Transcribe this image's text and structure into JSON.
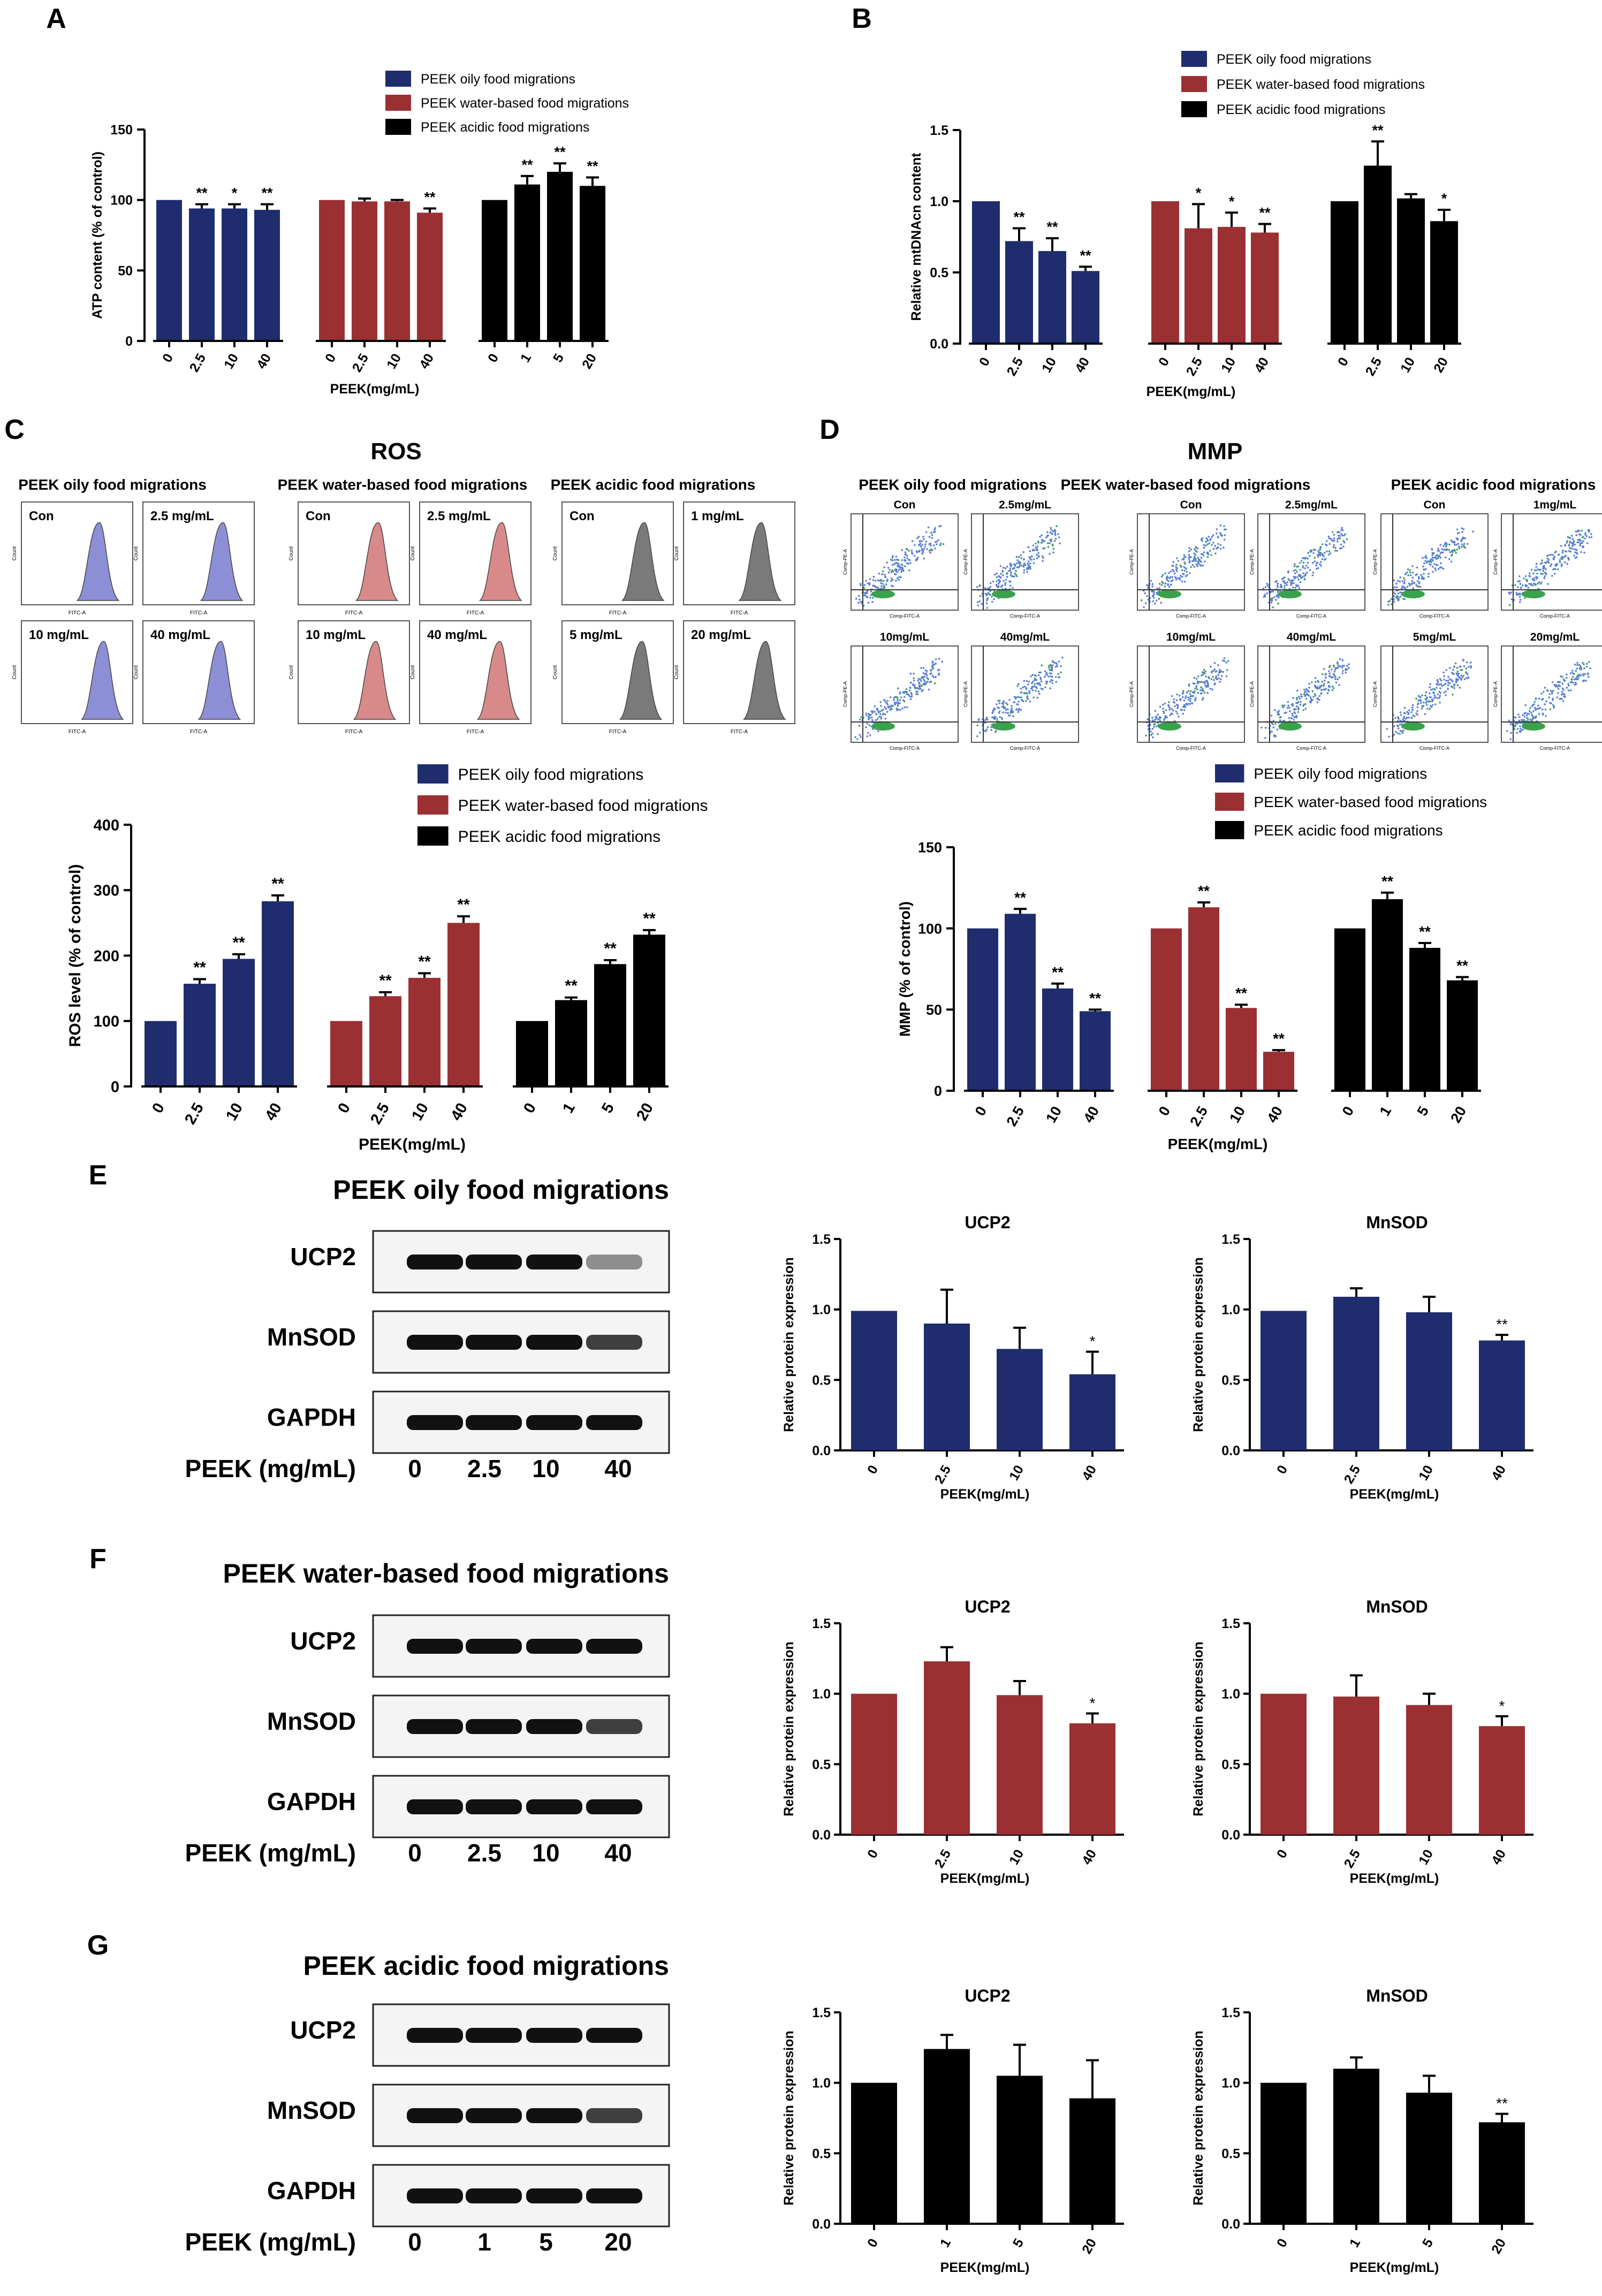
{
  "colors": {
    "blue": "#1f2d6e",
    "red": "#9b3033",
    "black": "#000000",
    "blue_peak": "#8d8fd6",
    "red_peak": "#d88a8a",
    "grey_peak": "#7a7a7a"
  },
  "panel_letters": {
    "A": "A",
    "B": "B",
    "C": "C",
    "D": "D",
    "E": "E",
    "F": "F",
    "G": "G"
  },
  "legend": {
    "oily": "PEEK oily food migrations",
    "water": "PEEK water-based food migrations",
    "acidic": "PEEK acidic food migrations"
  },
  "groups": {
    "A": {
      "type": "bar",
      "ylabel": "ATP content (% of control)",
      "xlabel": "PEEK(mg/mL)",
      "ylim": [
        0,
        150
      ],
      "yticks": [
        0,
        50,
        100,
        150
      ],
      "series": [
        {
          "name": "PEEK oily food migrations",
          "color": "blue",
          "categories": [
            "0",
            "2.5",
            "10",
            "40"
          ],
          "values": [
            100,
            94,
            94,
            93
          ],
          "errors": [
            0,
            3,
            3,
            4
          ],
          "sig": [
            "",
            "**",
            "*",
            "**"
          ]
        },
        {
          "name": "PEEK water-based food migrations",
          "color": "red",
          "categories": [
            "0",
            "2.5",
            "10",
            "40"
          ],
          "values": [
            100,
            99,
            99,
            91
          ],
          "errors": [
            0,
            2,
            1,
            3
          ],
          "sig": [
            "",
            "",
            "",
            "**"
          ]
        },
        {
          "name": "PEEK acidic food migrations",
          "color": "black",
          "categories": [
            "0",
            "1",
            "5",
            "20"
          ],
          "values": [
            100,
            111,
            120,
            110
          ],
          "errors": [
            0,
            6,
            6,
            6
          ],
          "sig": [
            "",
            "**",
            "**",
            "**"
          ]
        }
      ]
    },
    "B": {
      "type": "bar",
      "ylabel": "Relative mtDNAcn content",
      "xlabel": "PEEK(mg/mL)",
      "ylim": [
        0,
        1.5
      ],
      "yticks": [
        "0.0",
        "0.5",
        "1.0",
        "1.5"
      ],
      "series": [
        {
          "name": "PEEK oily food migrations",
          "color": "blue",
          "categories": [
            "0",
            "2.5",
            "10",
            "40"
          ],
          "values": [
            1.0,
            0.72,
            0.65,
            0.51
          ],
          "errors": [
            0,
            0.09,
            0.09,
            0.03
          ],
          "sig": [
            "",
            "**",
            "**",
            "**"
          ]
        },
        {
          "name": "PEEK water-based food migrations",
          "color": "red",
          "categories": [
            "0",
            "2.5",
            "10",
            "40"
          ],
          "values": [
            1.0,
            0.81,
            0.82,
            0.78
          ],
          "errors": [
            0,
            0.17,
            0.1,
            0.06
          ],
          "sig": [
            "",
            "*",
            "*",
            "**"
          ]
        },
        {
          "name": "PEEK acidic food migrations",
          "color": "black",
          "categories": [
            "0",
            "2.5",
            "10",
            "20"
          ],
          "values": [
            1.0,
            1.25,
            1.02,
            0.86
          ],
          "errors": [
            0,
            0.17,
            0.03,
            0.08
          ],
          "sig": [
            "",
            "**",
            "",
            "*"
          ]
        }
      ]
    },
    "C_bar": {
      "type": "bar",
      "ylabel": "ROS level (% of control)",
      "xlabel": "PEEK(mg/mL)",
      "ylim": [
        0,
        400
      ],
      "yticks": [
        0,
        100,
        200,
        300,
        400
      ],
      "series": [
        {
          "name": "PEEK oily food migrations",
          "color": "blue",
          "categories": [
            "0",
            "2.5",
            "10",
            "40"
          ],
          "values": [
            100,
            157,
            195,
            283
          ],
          "errors": [
            0,
            7,
            7,
            9
          ],
          "sig": [
            "",
            "**",
            "**",
            "**"
          ]
        },
        {
          "name": "PEEK water-based food migrations",
          "color": "red",
          "categories": [
            "0",
            "2.5",
            "10",
            "40"
          ],
          "values": [
            100,
            138,
            166,
            250
          ],
          "errors": [
            0,
            6,
            7,
            10
          ],
          "sig": [
            "",
            "**",
            "**",
            "**"
          ]
        },
        {
          "name": "PEEK acidic food migrations",
          "color": "black",
          "categories": [
            "0",
            "1",
            "5",
            "20"
          ],
          "values": [
            100,
            132,
            187,
            232
          ],
          "errors": [
            0,
            4,
            6,
            7
          ],
          "sig": [
            "",
            "**",
            "**",
            "**"
          ]
        }
      ]
    },
    "D_bar": {
      "type": "bar",
      "ylabel": "MMP (% of control)",
      "xlabel": "PEEK(mg/mL)",
      "ylim": [
        0,
        150
      ],
      "yticks": [
        0,
        50,
        100,
        150
      ],
      "series": [
        {
          "name": "PEEK oily food migrations",
          "color": "blue",
          "categories": [
            "0",
            "2.5",
            "10",
            "40"
          ],
          "values": [
            100,
            109,
            63,
            49
          ],
          "errors": [
            0,
            3,
            3,
            1
          ],
          "sig": [
            "",
            "**",
            "**",
            "**"
          ]
        },
        {
          "name": "PEEK water-based food migrations",
          "color": "red",
          "categories": [
            "0",
            "2.5",
            "10",
            "40"
          ],
          "values": [
            100,
            113,
            51,
            24
          ],
          "errors": [
            0,
            3,
            2,
            1
          ],
          "sig": [
            "",
            "**",
            "**",
            "**"
          ]
        },
        {
          "name": "PEEK acidic food migrations",
          "color": "black",
          "categories": [
            "0",
            "1",
            "5",
            "20"
          ],
          "values": [
            100,
            118,
            88,
            68
          ],
          "errors": [
            0,
            4,
            3,
            2
          ],
          "sig": [
            "",
            "**",
            "**",
            "**"
          ]
        }
      ]
    }
  },
  "chart_data": [
    {
      "panel": "A",
      "type": "bar",
      "ylabel": "ATP content (% of control)",
      "xlabel": "PEEK(mg/mL)",
      "ylim": [
        0,
        150
      ],
      "series": [
        {
          "name": "PEEK oily food migrations",
          "categories": [
            "0",
            "2.5",
            "10",
            "40"
          ],
          "values": [
            100,
            94,
            94,
            93
          ]
        },
        {
          "name": "PEEK water-based food migrations",
          "categories": [
            "0",
            "2.5",
            "10",
            "40"
          ],
          "values": [
            100,
            99,
            99,
            91
          ]
        },
        {
          "name": "PEEK acidic food migrations",
          "categories": [
            "0",
            "1",
            "5",
            "20"
          ],
          "values": [
            100,
            111,
            120,
            110
          ]
        }
      ]
    },
    {
      "panel": "B",
      "type": "bar",
      "ylabel": "Relative mtDNAcn content",
      "xlabel": "PEEK(mg/mL)",
      "ylim": [
        0,
        1.5
      ],
      "series": [
        {
          "name": "PEEK oily food migrations",
          "categories": [
            "0",
            "2.5",
            "10",
            "40"
          ],
          "values": [
            1.0,
            0.72,
            0.65,
            0.51
          ]
        },
        {
          "name": "PEEK water-based food migrations",
          "categories": [
            "0",
            "2.5",
            "10",
            "40"
          ],
          "values": [
            1.0,
            0.81,
            0.82,
            0.78
          ]
        },
        {
          "name": "PEEK acidic food migrations",
          "categories": [
            "0",
            "2.5",
            "10",
            "20"
          ],
          "values": [
            1.0,
            1.25,
            1.02,
            0.86
          ]
        }
      ]
    },
    {
      "panel": "C",
      "type": "bar",
      "title": "ROS",
      "ylabel": "ROS level (% of control)",
      "xlabel": "PEEK(mg/mL)",
      "ylim": [
        0,
        400
      ],
      "series": [
        {
          "name": "PEEK oily food migrations",
          "categories": [
            "0",
            "2.5",
            "10",
            "40"
          ],
          "values": [
            100,
            157,
            195,
            283
          ]
        },
        {
          "name": "PEEK water-based food migrations",
          "categories": [
            "0",
            "2.5",
            "10",
            "40"
          ],
          "values": [
            100,
            138,
            166,
            250
          ]
        },
        {
          "name": "PEEK acidic food migrations",
          "categories": [
            "0",
            "1",
            "5",
            "20"
          ],
          "values": [
            100,
            132,
            187,
            232
          ]
        }
      ]
    },
    {
      "panel": "D",
      "type": "bar",
      "title": "MMP",
      "ylabel": "MMP (% of control)",
      "xlabel": "PEEK(mg/mL)",
      "ylim": [
        0,
        150
      ],
      "series": [
        {
          "name": "PEEK oily food migrations",
          "categories": [
            "0",
            "2.5",
            "10",
            "40"
          ],
          "values": [
            100,
            109,
            63,
            49
          ]
        },
        {
          "name": "PEEK water-based food migrations",
          "categories": [
            "0",
            "2.5",
            "10",
            "40"
          ],
          "values": [
            100,
            113,
            51,
            24
          ]
        },
        {
          "name": "PEEK acidic food migrations",
          "categories": [
            "0",
            "1",
            "5",
            "20"
          ],
          "values": [
            100,
            118,
            88,
            68
          ]
        }
      ]
    },
    {
      "panel": "E",
      "type": "bar",
      "title": "UCP2",
      "series_name": "PEEK oily food migrations",
      "categories": [
        "0",
        "2.5",
        "10",
        "40"
      ],
      "values": [
        0.99,
        0.9,
        0.72,
        0.54
      ],
      "ylim": [
        0,
        1.5
      ]
    },
    {
      "panel": "E",
      "type": "bar",
      "title": "MnSOD",
      "series_name": "PEEK oily food migrations",
      "categories": [
        "0",
        "2.5",
        "10",
        "40"
      ],
      "values": [
        0.99,
        1.09,
        0.98,
        0.78
      ],
      "ylim": [
        0,
        1.5
      ]
    },
    {
      "panel": "F",
      "type": "bar",
      "title": "UCP2",
      "series_name": "PEEK water-based food migrations",
      "categories": [
        "0",
        "2.5",
        "10",
        "40"
      ],
      "values": [
        1.0,
        1.23,
        0.99,
        0.79
      ],
      "ylim": [
        0,
        1.5
      ]
    },
    {
      "panel": "F",
      "type": "bar",
      "title": "MnSOD",
      "series_name": "PEEK water-based food migrations",
      "categories": [
        "0",
        "2.5",
        "10",
        "40"
      ],
      "values": [
        1.0,
        0.98,
        0.92,
        0.77
      ],
      "ylim": [
        0,
        1.5
      ]
    },
    {
      "panel": "G",
      "type": "bar",
      "title": "UCP2",
      "series_name": "PEEK acidic food migrations",
      "categories": [
        "0",
        "1",
        "5",
        "20"
      ],
      "values": [
        1.0,
        1.24,
        1.05,
        0.89
      ],
      "ylim": [
        0,
        1.5
      ]
    },
    {
      "panel": "G",
      "type": "bar",
      "title": "MnSOD",
      "series_name": "PEEK acidic food migrations",
      "categories": [
        "0",
        "1",
        "5",
        "20"
      ],
      "values": [
        1.0,
        1.1,
        0.93,
        0.72
      ],
      "ylim": [
        0,
        1.5
      ]
    }
  ],
  "ros": {
    "title": "ROS",
    "group_titles": [
      "PEEK oily food migrations",
      "PEEK water-based food migrations",
      "PEEK acidic food migrations"
    ],
    "groups": [
      {
        "color": "blue_peak",
        "labels": [
          "Con",
          "2.5 mg/mL",
          "10 mg/mL",
          "40 mg/mL"
        ]
      },
      {
        "color": "red_peak",
        "labels": [
          "Con",
          "2.5 mg/mL",
          "10 mg/mL",
          "40 mg/mL"
        ]
      },
      {
        "color": "grey_peak",
        "labels": [
          "Con",
          "1 mg/mL",
          "5 mg/mL",
          "20 mg/mL"
        ]
      }
    ],
    "axis_x": "FITC-A",
    "axis_y": "Count"
  },
  "mmp": {
    "title": "MMP",
    "group_titles": [
      "PEEK oily food migrations",
      "PEEK water-based food migrations",
      "PEEK acidic food migrations"
    ],
    "groups": [
      {
        "labels": [
          "Con",
          "2.5mg/mL",
          "10mg/mL",
          "40mg/mL"
        ]
      },
      {
        "labels": [
          "Con",
          "2.5mg/mL",
          "10mg/mL",
          "40mg/mL"
        ]
      },
      {
        "labels": [
          "Con",
          "1mg/mL",
          "5mg/mL",
          "20mg/mL"
        ]
      }
    ],
    "axis_x": "Comp-FITC-A",
    "axis_y": "Comp-PE-A"
  },
  "western": {
    "row_labels": [
      "UCP2",
      "MnSOD",
      "GAPDH"
    ],
    "peek_label": "PEEK (mg/mL)",
    "panels": [
      {
        "title": "PEEK oily food migrations",
        "doses": [
          "0",
          "2.5",
          "10",
          "40"
        ],
        "color": "blue",
        "ucp2": {
          "title": "UCP2",
          "values": [
            0.99,
            0.9,
            0.72,
            0.54
          ],
          "errors": [
            0,
            0.24,
            0.15,
            0.16
          ],
          "sig": [
            "",
            "",
            "",
            "*"
          ]
        },
        "mnsod": {
          "title": "MnSOD",
          "values": [
            0.99,
            1.09,
            0.98,
            0.78
          ],
          "errors": [
            0,
            0.06,
            0.11,
            0.04
          ],
          "sig": [
            "",
            "",
            "",
            "**"
          ]
        }
      },
      {
        "title": "PEEK water-based food migrations",
        "doses": [
          "0",
          "2.5",
          "10",
          "40"
        ],
        "color": "red",
        "ucp2": {
          "title": "UCP2",
          "values": [
            1.0,
            1.23,
            0.99,
            0.79
          ],
          "errors": [
            0,
            0.1,
            0.1,
            0.07
          ],
          "sig": [
            "",
            "",
            "",
            "*"
          ]
        },
        "mnsod": {
          "title": "MnSOD",
          "values": [
            1.0,
            0.98,
            0.92,
            0.77
          ],
          "errors": [
            0,
            0.15,
            0.08,
            0.07
          ],
          "sig": [
            "",
            "",
            "",
            "*"
          ]
        }
      },
      {
        "title": "PEEK acidic food migrations",
        "doses": [
          "0",
          "1",
          "5",
          "20"
        ],
        "color": "black",
        "ucp2": {
          "title": "UCP2",
          "values": [
            1.0,
            1.24,
            1.05,
            0.89
          ],
          "errors": [
            0,
            0.1,
            0.22,
            0.27
          ],
          "sig": [
            "",
            "",
            "",
            ""
          ]
        },
        "mnsod": {
          "title": "MnSOD",
          "values": [
            1.0,
            1.1,
            0.93,
            0.72
          ],
          "errors": [
            0,
            0.08,
            0.12,
            0.06
          ],
          "sig": [
            "",
            "",
            "",
            "**"
          ]
        }
      }
    ],
    "small_ylabel": "Relative protein expression",
    "small_xlabel": "PEEK(mg/mL)",
    "small_yticks": [
      "0.0",
      "0.5",
      "1.0",
      "1.5"
    ]
  }
}
